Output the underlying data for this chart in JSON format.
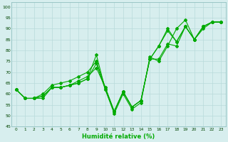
{
  "xlabel": "Humidité relative (%)",
  "bg_color": "#d7eeee",
  "grid_color": "#b8dada",
  "line_color": "#00aa00",
  "xlim": [
    -0.5,
    23.5
  ],
  "ylim": [
    45,
    102
  ],
  "yticks": [
    45,
    50,
    55,
    60,
    65,
    70,
    75,
    80,
    85,
    90,
    95,
    100
  ],
  "xticks": [
    0,
    1,
    2,
    3,
    4,
    5,
    6,
    7,
    8,
    9,
    10,
    11,
    12,
    13,
    14,
    15,
    16,
    17,
    18,
    19,
    20,
    21,
    22,
    23
  ],
  "series": [
    [
      62,
      58,
      58,
      58,
      63,
      63,
      64,
      65,
      67,
      78,
      62,
      51,
      60,
      53,
      56,
      77,
      75,
      82,
      90,
      94,
      85,
      90,
      93,
      93
    ],
    [
      62,
      58,
      58,
      59,
      63,
      63,
      64,
      65,
      67,
      74,
      62,
      52,
      61,
      54,
      57,
      76,
      76,
      83,
      82,
      91,
      85,
      91,
      93,
      93
    ],
    [
      62,
      58,
      58,
      59,
      63,
      63,
      64,
      66,
      68,
      72,
      63,
      52,
      61,
      54,
      57,
      76,
      82,
      89,
      84,
      91,
      85,
      91,
      93,
      93
    ],
    [
      62,
      58,
      58,
      60,
      64,
      65,
      66,
      68,
      70,
      75,
      63,
      52,
      61,
      54,
      57,
      76,
      82,
      90,
      84,
      91,
      85,
      91,
      93,
      93
    ]
  ]
}
